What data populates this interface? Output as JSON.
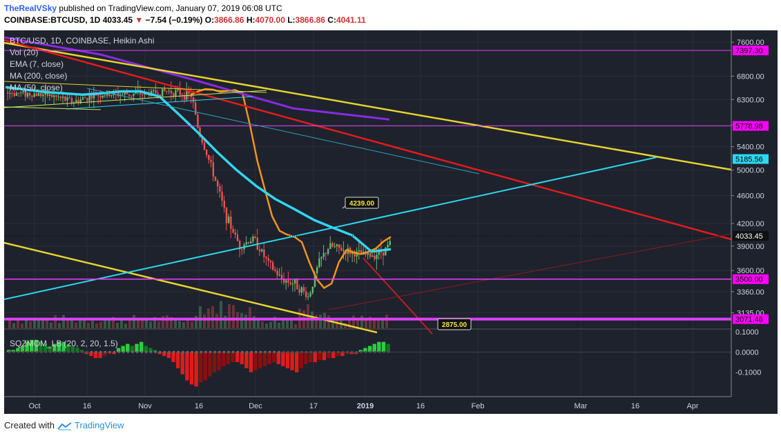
{
  "header": {
    "user": "TheRealVSky",
    "published": "published on TradingView.com, January 07, 2019 06:08 UTC",
    "symbol": "COINBASE:BTCUSD, 1D",
    "last": "4033.45",
    "change": "−7.54 (−0.19%)",
    "o_label": "O:",
    "o": "3866.86",
    "h_label": "H:",
    "h": "4070.00",
    "l_label": "L:",
    "l": "3866.86",
    "c_label": "C:",
    "c": "4041.11"
  },
  "legend": [
    "BTC/USD, 1D, COINBASE, Heikin Ashi",
    "Vol (20)",
    "EMA (7, close)",
    "MA (200, close)",
    "MA (50, close)"
  ],
  "indicator_label": "SQZMOM_LB (20, 2, 20, 1.5)",
  "footer": {
    "created": "Created with",
    "brand": "TradingView"
  },
  "colors": {
    "bg": "#1e222d",
    "grid": "#2a2e39",
    "up": "#66bb6a",
    "down": "#ef5350",
    "ema": "#f7931a",
    "ma50": "#33d6f0",
    "ma200": "#8a2be2",
    "trend_yellow": "#e6d42e",
    "trend_red": "#e31b1b",
    "trend_cyan": "#2bd9f0",
    "hline": "#e040fb",
    "tag": "#ff00ff"
  },
  "chart_data": [
    {
      "type": "line",
      "title": "BTC/USD, 1D, COINBASE, Heikin Ashi",
      "x_ticks": [
        "Oct",
        "16",
        "Nov",
        "16",
        "Dec",
        "17",
        "2019",
        "16",
        "Feb",
        "Mar",
        "16",
        "Apr"
      ],
      "y_ticks": [
        7600,
        6800,
        6300,
        5800,
        5400,
        5000,
        4600,
        4200,
        3900,
        3600,
        3360,
        3135
      ],
      "y_scale": "log",
      "ylim": [
        2980,
        7900
      ],
      "price_tags": [
        7397.3,
        5778.98,
        5185.56,
        4033.45,
        3500.0,
        3071.46
      ],
      "callouts": [
        "4239.00",
        "2875.00"
      ],
      "series": [
        {
          "kind": "ema",
          "values": [
            6400,
            6470,
            6520,
            6510,
            6460,
            6480,
            6500,
            6430,
            5800,
            5150,
            4700,
            4300,
            4100,
            4050,
            4020,
            3950,
            3700,
            3500,
            3400,
            3450,
            3700,
            3850,
            3820,
            3800,
            3830,
            3870,
            3960,
            4020
          ]
        },
        {
          "kind": "ma50",
          "values": [
            6560,
            6510,
            6460,
            6430,
            6400,
            6430,
            6470,
            6470,
            6360,
            6000,
            5650,
            5300,
            5000,
            4750,
            4550,
            4400,
            4250,
            4140,
            4040,
            3830,
            3860
          ]
        },
        {
          "kind": "ma200",
          "values": [
            7720,
            7300,
            6700,
            6120,
            5900
          ]
        }
      ]
    },
    {
      "type": "bar",
      "title": "SQZMOM_LB (20, 2, 20, 1.5)",
      "y_ticks": [
        0.1,
        0.0,
        -0.1
      ],
      "ylim": [
        -0.22,
        0.11
      ],
      "values": [
        0.01,
        0.01,
        0.02,
        0.03,
        0.05,
        0.06,
        0.06,
        0.05,
        0.04,
        0.03,
        0.04,
        0.05,
        0.05,
        0.04,
        0.03,
        0.02,
        0.01,
        -0.01,
        -0.02,
        -0.03,
        -0.03,
        -0.02,
        -0.01,
        -0.01,
        0.02,
        0.03,
        0.04,
        0.03,
        0.04,
        0.05,
        0.03,
        0.02,
        0.01,
        -0.01,
        -0.02,
        -0.03,
        -0.05,
        -0.08,
        -0.11,
        -0.14,
        -0.16,
        -0.17,
        -0.15,
        -0.14,
        -0.12,
        -0.1,
        -0.09,
        -0.07,
        -0.06,
        -0.05,
        -0.05,
        -0.06,
        -0.08,
        -0.1,
        -0.09,
        -0.08,
        -0.07,
        -0.06,
        -0.05,
        -0.06,
        -0.07,
        -0.08,
        -0.09,
        -0.1,
        -0.08,
        -0.06,
        -0.05,
        -0.05,
        -0.04,
        -0.04,
        -0.03,
        -0.03,
        -0.02,
        -0.02,
        -0.01,
        -0.01,
        -0.01,
        0.01,
        0.02,
        0.03,
        0.04,
        0.05,
        0.05,
        0.04
      ]
    }
  ]
}
